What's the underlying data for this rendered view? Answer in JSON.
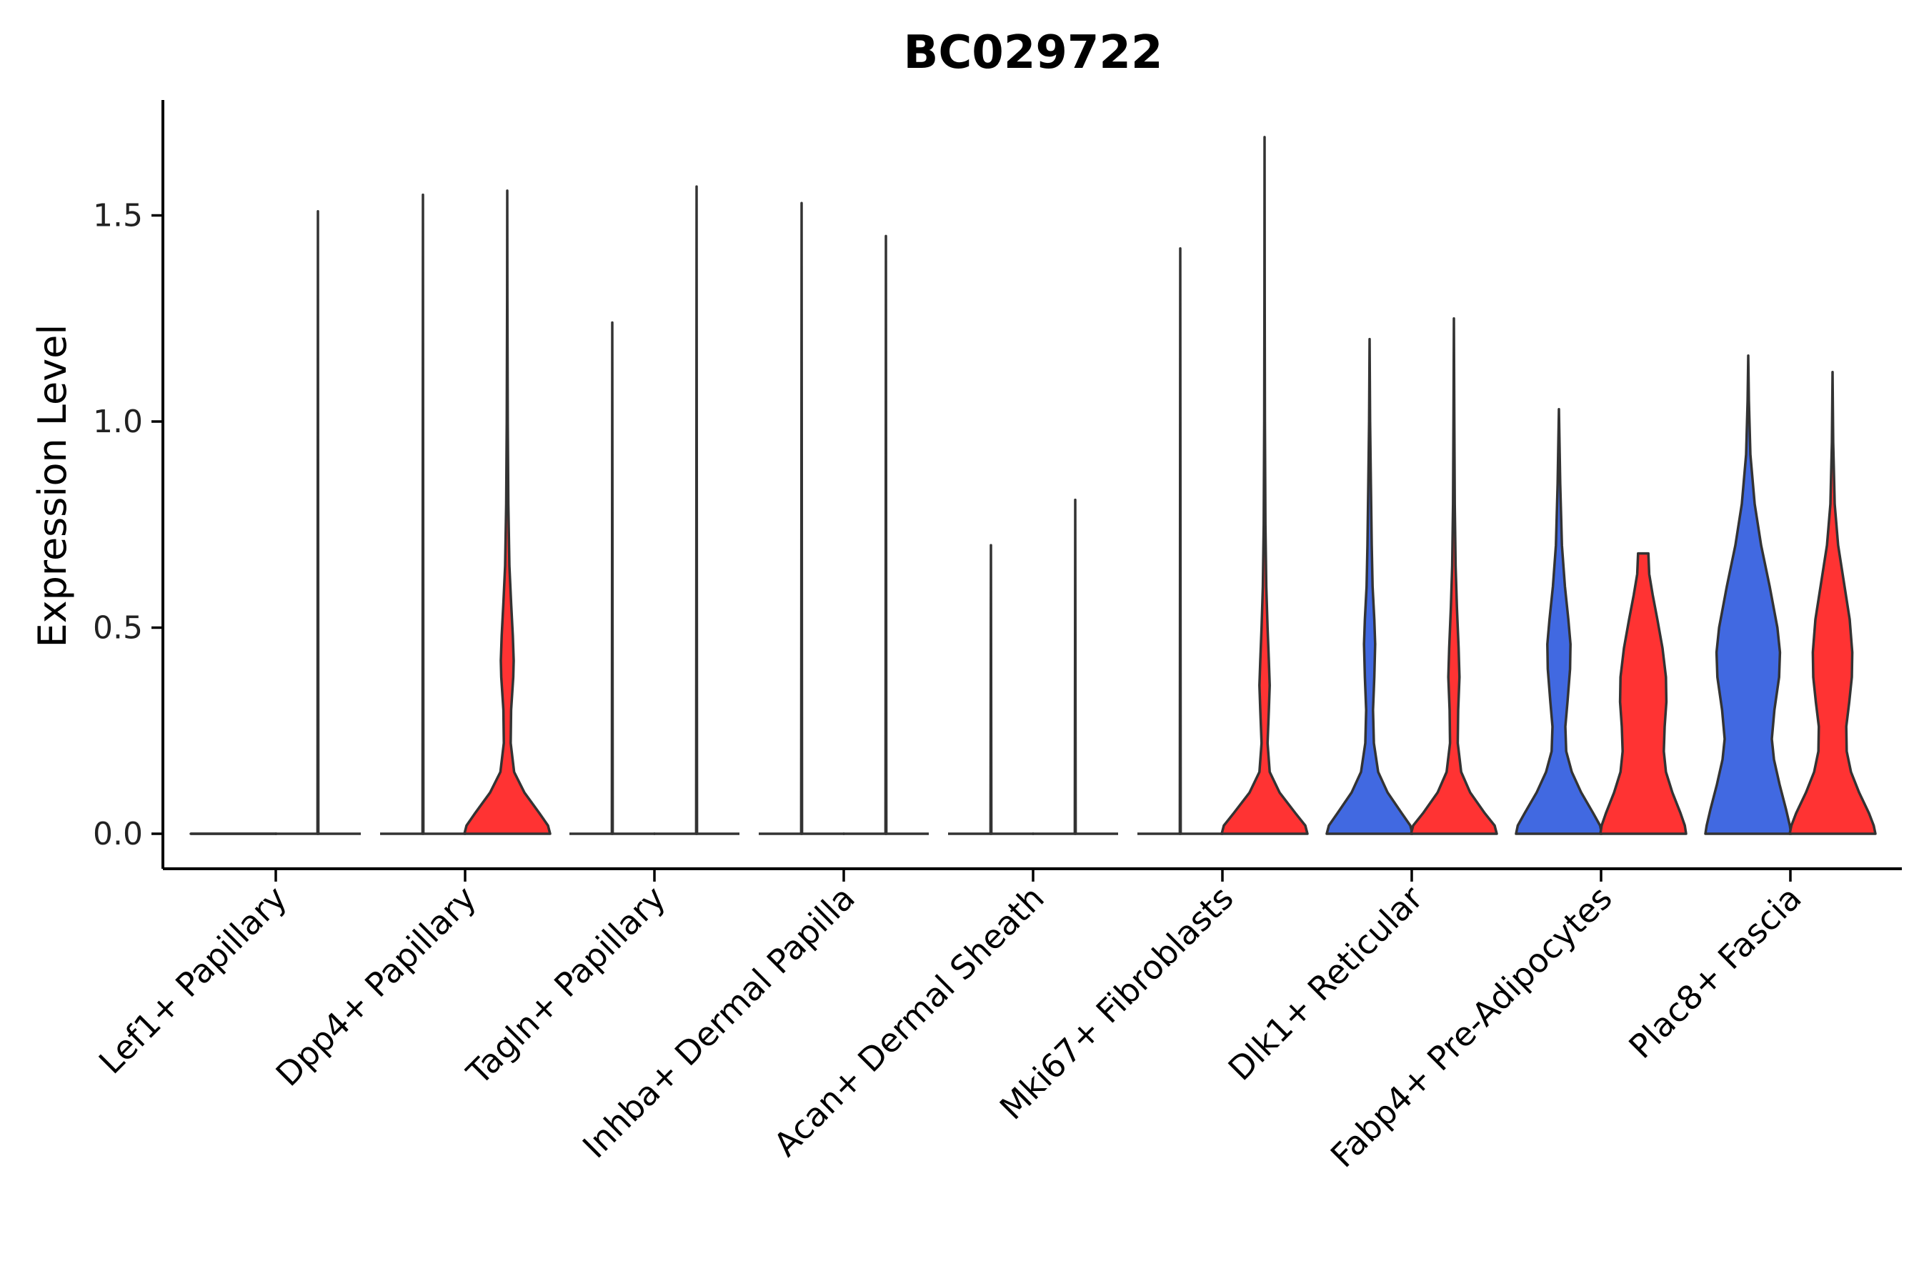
{
  "chart_data": {
    "type": "violin",
    "title": "BC029722",
    "xlabel": "",
    "ylabel": "Expression Level",
    "ylim": [
      -0.08,
      1.78
    ],
    "yticks": [
      0.0,
      0.5,
      1.0,
      1.5
    ],
    "ytick_labels": [
      "0.0",
      "0.5",
      "1.0",
      "1.5"
    ],
    "grid": false,
    "legend": "none",
    "colors": {
      "blue": "#4169E1",
      "red": "#FF3333",
      "outline": "#333333"
    },
    "categories": [
      "Lef1+ Papillary",
      "Dpp4+ Papillary",
      "Tagln+ Papillary",
      "Inhba+ Dermal Papilla",
      "Acan+ Dermal Sheath",
      "Mki67+ Fibroblasts",
      "Dlk1+ Reticular",
      "Fabp4+ Pre-Adipocytes",
      "Plac8+ Fascia"
    ],
    "violins": [
      {
        "category": 0,
        "side": "left",
        "color": "blue",
        "max": 0.0,
        "profile": [
          [
            0,
            0.005
          ]
        ]
      },
      {
        "category": 0,
        "side": "right",
        "color": "blue",
        "max": 1.51,
        "profile": [
          [
            0,
            0.01
          ],
          [
            1.51,
            0.0
          ]
        ]
      },
      {
        "category": 1,
        "side": "left",
        "color": "blue",
        "max": 1.55,
        "profile": [
          [
            0,
            0.01
          ],
          [
            1.55,
            0.0
          ]
        ]
      },
      {
        "category": 1,
        "side": "right",
        "color": "red",
        "max": 1.56,
        "profile": [
          [
            0,
            1.0
          ],
          [
            0.02,
            0.95
          ],
          [
            0.05,
            0.75
          ],
          [
            0.1,
            0.4
          ],
          [
            0.15,
            0.16
          ],
          [
            0.22,
            0.08
          ],
          [
            0.3,
            0.09
          ],
          [
            0.38,
            0.14
          ],
          [
            0.42,
            0.15
          ],
          [
            0.48,
            0.13
          ],
          [
            0.56,
            0.09
          ],
          [
            0.65,
            0.05
          ],
          [
            0.8,
            0.025
          ],
          [
            1.0,
            0.012
          ],
          [
            1.3,
            0.004
          ],
          [
            1.56,
            0.0
          ]
        ]
      },
      {
        "category": 2,
        "side": "left",
        "color": "blue",
        "max": 1.24,
        "profile": [
          [
            0,
            0.01
          ],
          [
            1.24,
            0.0
          ]
        ]
      },
      {
        "category": 2,
        "side": "right",
        "color": "blue",
        "max": 1.57,
        "profile": [
          [
            0,
            0.01
          ],
          [
            1.57,
            0.0
          ]
        ]
      },
      {
        "category": 3,
        "side": "left",
        "color": "blue",
        "max": 1.53,
        "profile": [
          [
            0,
            0.01
          ],
          [
            1.53,
            0.0
          ]
        ]
      },
      {
        "category": 3,
        "side": "right",
        "color": "blue",
        "max": 1.45,
        "profile": [
          [
            0,
            0.01
          ],
          [
            1.45,
            0.0
          ]
        ]
      },
      {
        "category": 4,
        "side": "left",
        "color": "blue",
        "max": 0.7,
        "profile": [
          [
            0,
            0.01
          ],
          [
            0.7,
            0.0
          ]
        ]
      },
      {
        "category": 4,
        "side": "right",
        "color": "blue",
        "max": 0.81,
        "profile": [
          [
            0,
            0.01
          ],
          [
            0.81,
            0.0
          ]
        ]
      },
      {
        "category": 5,
        "side": "left",
        "color": "blue",
        "max": 1.42,
        "profile": [
          [
            0,
            0.01
          ],
          [
            1.42,
            0.0
          ]
        ]
      },
      {
        "category": 5,
        "side": "right",
        "color": "red",
        "max": 1.69,
        "profile": [
          [
            0,
            1.0
          ],
          [
            0.02,
            0.95
          ],
          [
            0.05,
            0.72
          ],
          [
            0.1,
            0.35
          ],
          [
            0.15,
            0.12
          ],
          [
            0.22,
            0.07
          ],
          [
            0.3,
            0.1
          ],
          [
            0.36,
            0.12
          ],
          [
            0.42,
            0.1
          ],
          [
            0.5,
            0.07
          ],
          [
            0.6,
            0.04
          ],
          [
            0.75,
            0.02
          ],
          [
            1.0,
            0.008
          ],
          [
            1.3,
            0.003
          ],
          [
            1.69,
            0.0
          ]
        ]
      },
      {
        "category": 6,
        "side": "left",
        "color": "blue",
        "max": 1.2,
        "profile": [
          [
            0,
            1.0
          ],
          [
            0.02,
            0.95
          ],
          [
            0.05,
            0.75
          ],
          [
            0.1,
            0.42
          ],
          [
            0.15,
            0.2
          ],
          [
            0.22,
            0.1
          ],
          [
            0.3,
            0.08
          ],
          [
            0.38,
            0.11
          ],
          [
            0.46,
            0.13
          ],
          [
            0.52,
            0.11
          ],
          [
            0.6,
            0.07
          ],
          [
            0.7,
            0.05
          ],
          [
            0.85,
            0.03
          ],
          [
            1.0,
            0.012
          ],
          [
            1.2,
            0.0
          ]
        ]
      },
      {
        "category": 6,
        "side": "right",
        "color": "red",
        "max": 1.25,
        "profile": [
          [
            0,
            1.0
          ],
          [
            0.02,
            0.95
          ],
          [
            0.05,
            0.72
          ],
          [
            0.1,
            0.38
          ],
          [
            0.15,
            0.17
          ],
          [
            0.22,
            0.09
          ],
          [
            0.3,
            0.1
          ],
          [
            0.38,
            0.13
          ],
          [
            0.45,
            0.11
          ],
          [
            0.55,
            0.07
          ],
          [
            0.65,
            0.04
          ],
          [
            0.8,
            0.02
          ],
          [
            1.0,
            0.01
          ],
          [
            1.25,
            0.0
          ]
        ]
      },
      {
        "category": 7,
        "side": "left",
        "color": "blue",
        "max": 1.03,
        "profile": [
          [
            0,
            1.0
          ],
          [
            0.02,
            0.96
          ],
          [
            0.05,
            0.8
          ],
          [
            0.1,
            0.52
          ],
          [
            0.15,
            0.3
          ],
          [
            0.2,
            0.17
          ],
          [
            0.26,
            0.15
          ],
          [
            0.32,
            0.2
          ],
          [
            0.4,
            0.26
          ],
          [
            0.46,
            0.27
          ],
          [
            0.52,
            0.22
          ],
          [
            0.6,
            0.14
          ],
          [
            0.7,
            0.07
          ],
          [
            0.85,
            0.03
          ],
          [
            1.03,
            0.0
          ]
        ]
      },
      {
        "category": 7,
        "side": "right",
        "color": "red",
        "max": 0.68,
        "profile": [
          [
            0,
            1.0
          ],
          [
            0.02,
            0.97
          ],
          [
            0.05,
            0.87
          ],
          [
            0.1,
            0.68
          ],
          [
            0.15,
            0.53
          ],
          [
            0.2,
            0.48
          ],
          [
            0.26,
            0.5
          ],
          [
            0.32,
            0.54
          ],
          [
            0.38,
            0.53
          ],
          [
            0.45,
            0.45
          ],
          [
            0.52,
            0.33
          ],
          [
            0.58,
            0.22
          ],
          [
            0.63,
            0.14
          ],
          [
            0.68,
            0.12
          ]
        ]
      },
      {
        "category": 8,
        "side": "left",
        "color": "blue",
        "max": 1.16,
        "profile": [
          [
            0,
            1.0
          ],
          [
            0.02,
            0.97
          ],
          [
            0.06,
            0.88
          ],
          [
            0.12,
            0.73
          ],
          [
            0.18,
            0.6
          ],
          [
            0.23,
            0.55
          ],
          [
            0.3,
            0.61
          ],
          [
            0.38,
            0.72
          ],
          [
            0.44,
            0.74
          ],
          [
            0.5,
            0.68
          ],
          [
            0.6,
            0.5
          ],
          [
            0.7,
            0.3
          ],
          [
            0.8,
            0.15
          ],
          [
            0.92,
            0.05
          ],
          [
            1.05,
            0.015
          ],
          [
            1.16,
            0.0
          ]
        ]
      },
      {
        "category": 8,
        "side": "right",
        "color": "red",
        "max": 1.12,
        "profile": [
          [
            0,
            1.0
          ],
          [
            0.02,
            0.96
          ],
          [
            0.05,
            0.85
          ],
          [
            0.1,
            0.62
          ],
          [
            0.15,
            0.43
          ],
          [
            0.2,
            0.33
          ],
          [
            0.26,
            0.32
          ],
          [
            0.32,
            0.39
          ],
          [
            0.38,
            0.45
          ],
          [
            0.44,
            0.46
          ],
          [
            0.52,
            0.4
          ],
          [
            0.6,
            0.28
          ],
          [
            0.7,
            0.13
          ],
          [
            0.8,
            0.05
          ],
          [
            0.95,
            0.015
          ],
          [
            1.12,
            0.0
          ]
        ]
      }
    ]
  }
}
